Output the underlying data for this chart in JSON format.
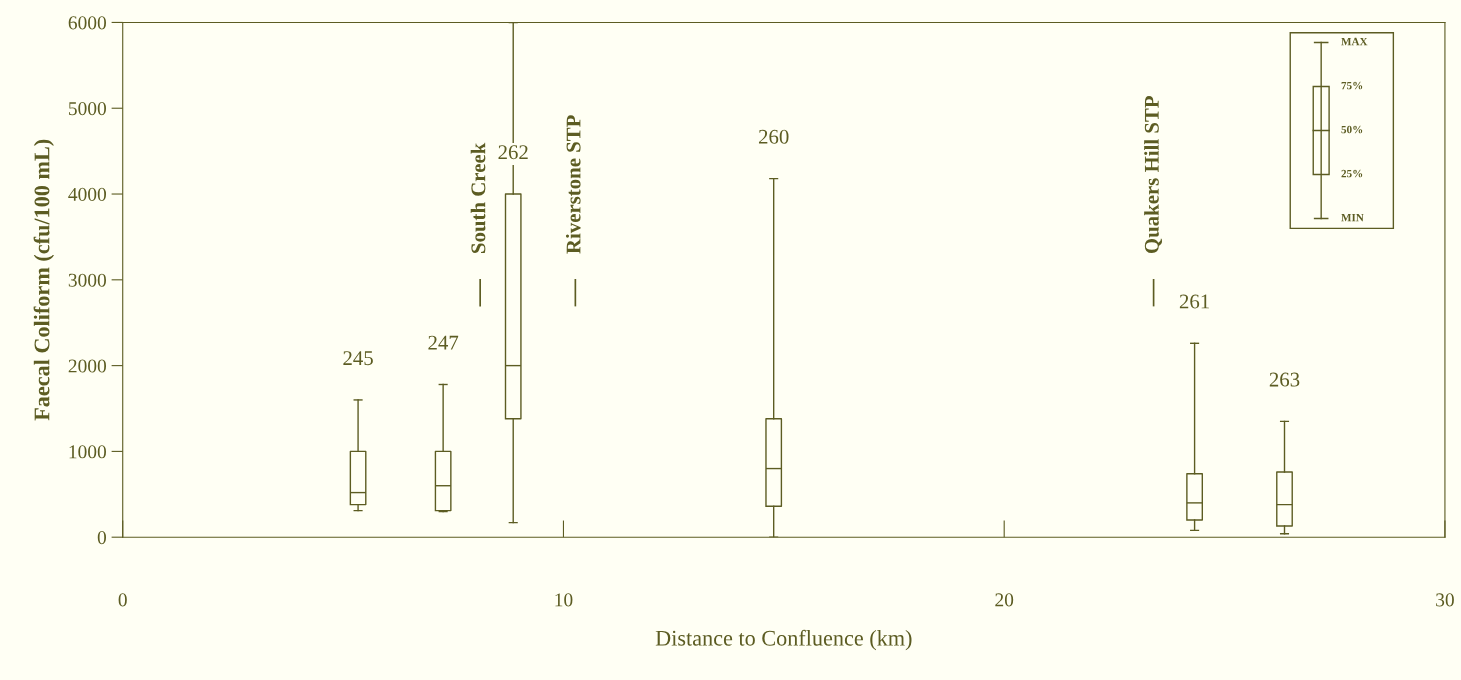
{
  "chart_data": {
    "type": "box",
    "xlabel": "Distance to Confluence (km)",
    "ylabel": "Faecal Coliform (cfu/100 mL)",
    "x": [
      5.34,
      7.27,
      8.86,
      14.77,
      24.32,
      26.36
    ],
    "boxes": [
      {
        "low": 310,
        "q1": 380,
        "median": 520,
        "q3": 1000,
        "high": 1600
      },
      {
        "low": 300,
        "q1": 310,
        "median": 600,
        "q3": 1000,
        "high": 1780
      },
      {
        "low": 170,
        "q1": 1380,
        "median": 2000,
        "q3": 4000,
        "high": 6000
      },
      {
        "low": 0,
        "q1": 360,
        "median": 800,
        "q3": 1380,
        "high": 4180
      },
      {
        "low": 80,
        "q1": 200,
        "median": 400,
        "q3": 740,
        "high": 2260
      },
      {
        "low": 40,
        "q1": 130,
        "median": 380,
        "q3": 760,
        "high": 1350
      }
    ],
    "color": "#5c5c22",
    "xlim": [
      0,
      30
    ],
    "ylim": [
      0,
      6000
    ],
    "xticks": [
      0,
      10,
      20,
      30
    ],
    "yticks": [
      0,
      1000,
      2000,
      3000,
      4000,
      5000,
      6000
    ],
    "grid": false,
    "annotations": [
      {
        "text": "245",
        "x": 5.34,
        "y": 1600
      },
      {
        "text": "247",
        "x": 7.27,
        "y": 1780
      },
      {
        "text": "262",
        "x": 8.86,
        "y": 4000
      },
      {
        "text": "260",
        "x": 14.77,
        "y": 4180
      },
      {
        "text": "261",
        "x": 24.32,
        "y": 2260
      },
      {
        "text": "263",
        "x": 26.36,
        "y": 1350
      },
      "MAX",
      "75%",
      "50%",
      "25%",
      "MIN"
    ],
    "ref_lines": [
      {
        "axis": "x",
        "value": 8.11,
        "label": "South Creek"
      },
      {
        "axis": "x",
        "value": 10.27,
        "label": "Riverstone STP"
      },
      {
        "axis": "x",
        "value": 23.39,
        "label": "Quakers Hill STP"
      }
    ]
  }
}
